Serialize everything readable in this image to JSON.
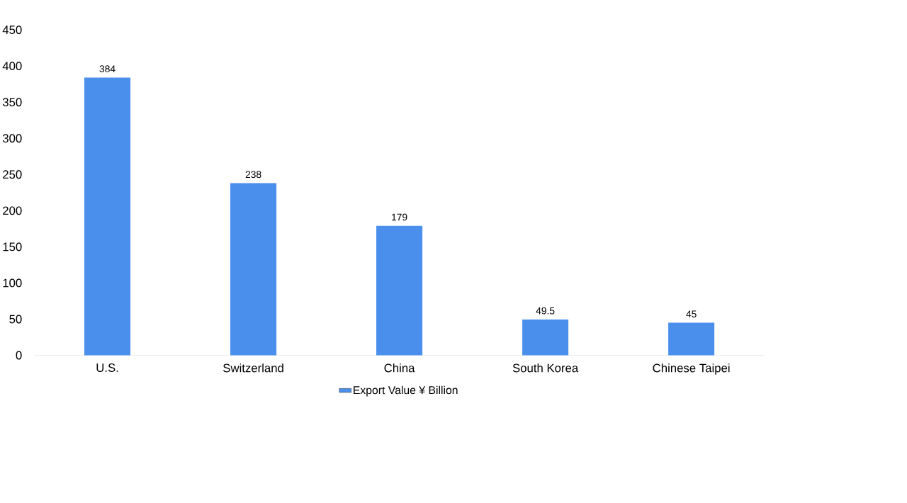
{
  "chart_data": {
    "type": "bar",
    "categories": [
      "U.S.",
      "Switzerland",
      "China",
      "South Korea",
      "Chinese Taipei"
    ],
    "series": [
      {
        "name": "Export Value ¥ Billion",
        "color": "#4a8fec",
        "values": [
          384,
          238,
          179,
          49.5,
          45
        ]
      }
    ],
    "ylim": [
      0,
      450
    ],
    "yticks": [
      0,
      50,
      100,
      150,
      200,
      250,
      300,
      350,
      400,
      450
    ],
    "data_labels": true,
    "legend": "bottom"
  }
}
